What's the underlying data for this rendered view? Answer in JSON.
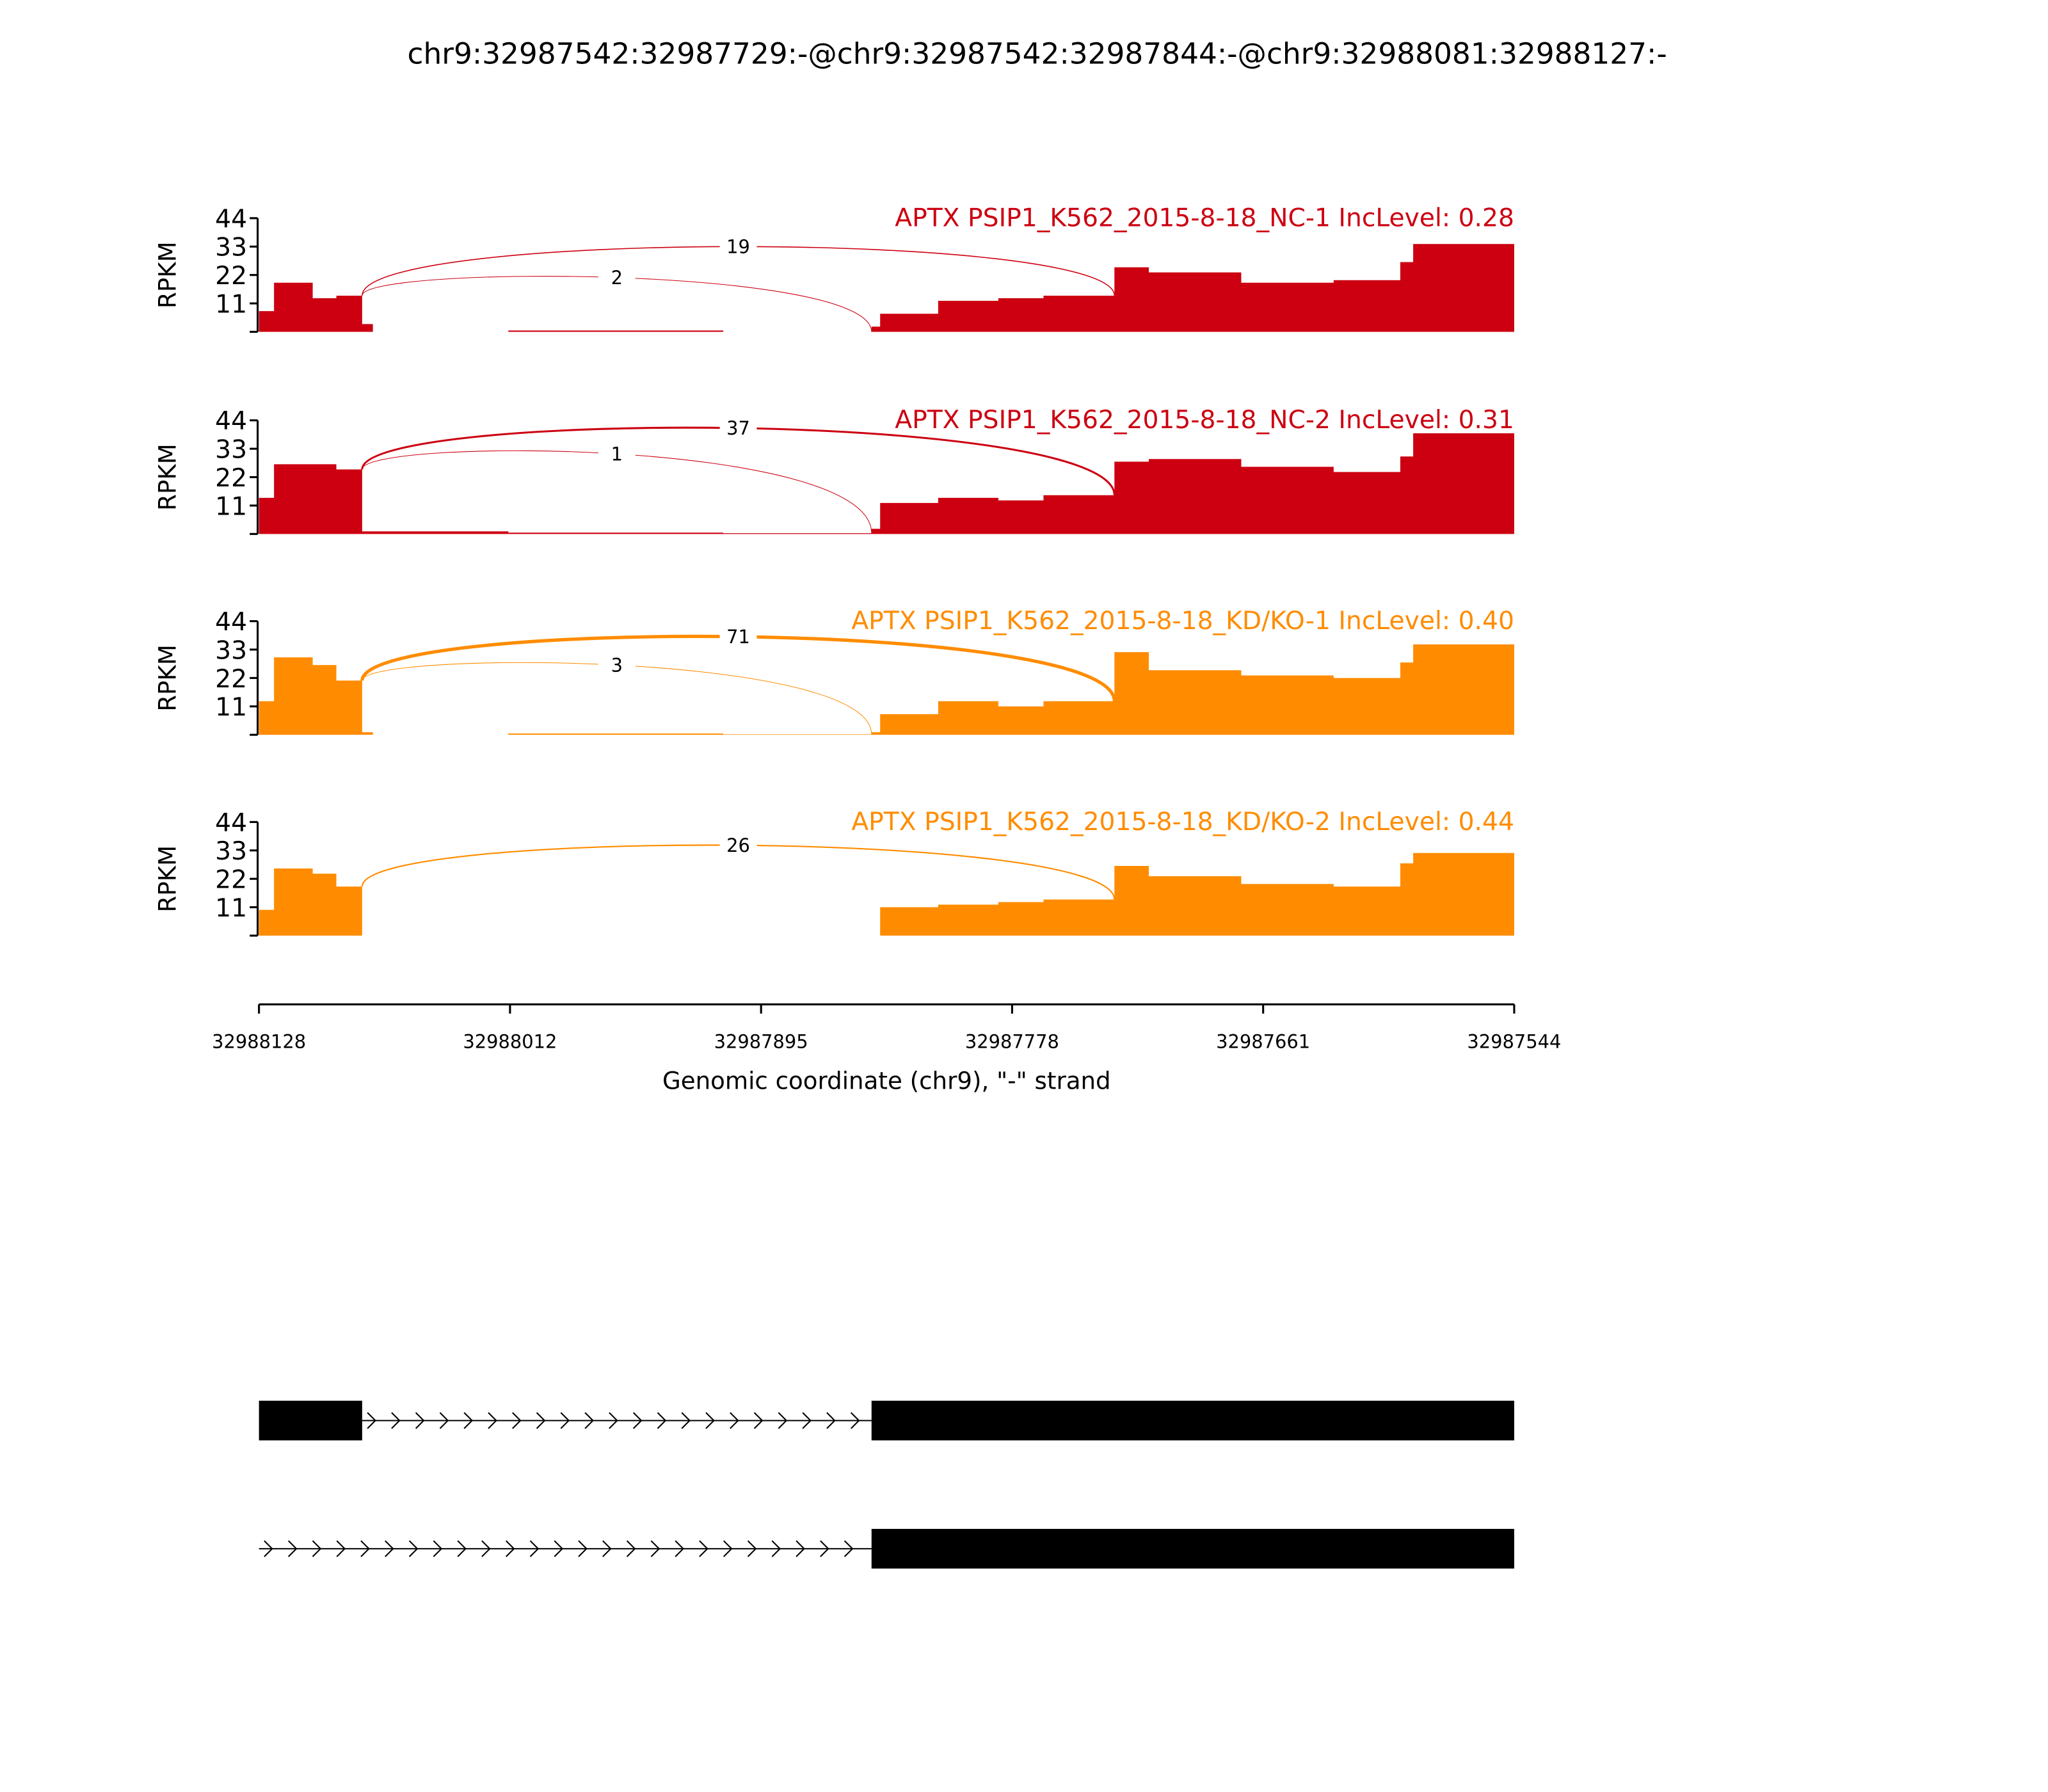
{
  "chart_data": {
    "type": "area",
    "title": "chr9:32987542:32987729:-@chr9:32987542:32987844:-@chr9:32988081:32988127:-",
    "ylabel": "RPKM",
    "xlabel": "Genomic coordinate (chr9), \"-\" strand",
    "xlim": [
      32988128,
      32987544
    ],
    "ylim": [
      0,
      44
    ],
    "yticks": [
      "44",
      "33",
      "22",
      "11"
    ],
    "xticks": [
      "32988128",
      "32988012",
      "32987895",
      "32987778",
      "32987661",
      "32987544"
    ],
    "breakpoints": [
      32988128,
      32988126,
      32988121,
      32988103,
      32988092,
      32988080,
      32988075,
      32988012,
      32987912,
      32987843,
      32987839,
      32987812,
      32987784,
      32987763,
      32987730,
      32987714,
      32987671,
      32987628,
      32987597,
      32987591,
      32987544
    ],
    "series": [
      {
        "name": "APTX PSIP1_K562_2015-8-18_NC-1 IncLevel: 0.28",
        "color": "#cc0011",
        "values": [
          8,
          8,
          19,
          13,
          14,
          3,
          0,
          0.5,
          0,
          2,
          7,
          12,
          13,
          14,
          25,
          23,
          19,
          20,
          27,
          34
        ],
        "junctions": [
          {
            "from": 32988080,
            "to": 32987730,
            "count": "19",
            "peak": 33
          },
          {
            "from": 32988080,
            "to": 32987843,
            "count": "2",
            "peak": 21
          }
        ]
      },
      {
        "name": "APTX PSIP1_K562_2015-8-18_NC-2 IncLevel: 0.31",
        "color": "#cc0011",
        "values": [
          14,
          14,
          27,
          27,
          25,
          1,
          1,
          0.5,
          0.3,
          2,
          12,
          14,
          13,
          15,
          28,
          29,
          26,
          24,
          30,
          39
        ],
        "junctions": [
          {
            "from": 32988080,
            "to": 32987730,
            "count": "37",
            "peak": 41
          },
          {
            "from": 32988080,
            "to": 32987843,
            "count": "1",
            "peak": 31
          }
        ]
      },
      {
        "name": "APTX PSIP1_K562_2015-8-18_KD/KO-1 IncLevel: 0.40",
        "color": "#ff8c00",
        "values": [
          13,
          13,
          30,
          27,
          21,
          1,
          0,
          0.5,
          0.2,
          1,
          8,
          13,
          11,
          13,
          32,
          25,
          23,
          22,
          28,
          35
        ],
        "junctions": [
          {
            "from": 32988080,
            "to": 32987730,
            "count": "71",
            "peak": 38
          },
          {
            "from": 32988080,
            "to": 32987843,
            "count": "3",
            "peak": 27
          }
        ]
      },
      {
        "name": "APTX PSIP1_K562_2015-8-18_KD/KO-2 IncLevel: 0.44",
        "color": "#ff8c00",
        "values": [
          10,
          10,
          26,
          24,
          19,
          0,
          0,
          0,
          0,
          0,
          11,
          12,
          13,
          14,
          27,
          23,
          20,
          19,
          28,
          32
        ],
        "junctions": [
          {
            "from": 32988080,
            "to": 32987730,
            "count": "26",
            "peak": 35
          }
        ]
      }
    ],
    "isoforms": [
      {
        "exons": [
          [
            32988128,
            32988080
          ],
          [
            32987843,
            32987544
          ]
        ],
        "intron": [
          32988080,
          32987843
        ]
      },
      {
        "exons": [
          [
            32987843,
            32987544
          ]
        ],
        "intron": [
          32988128,
          32987843
        ]
      }
    ]
  }
}
